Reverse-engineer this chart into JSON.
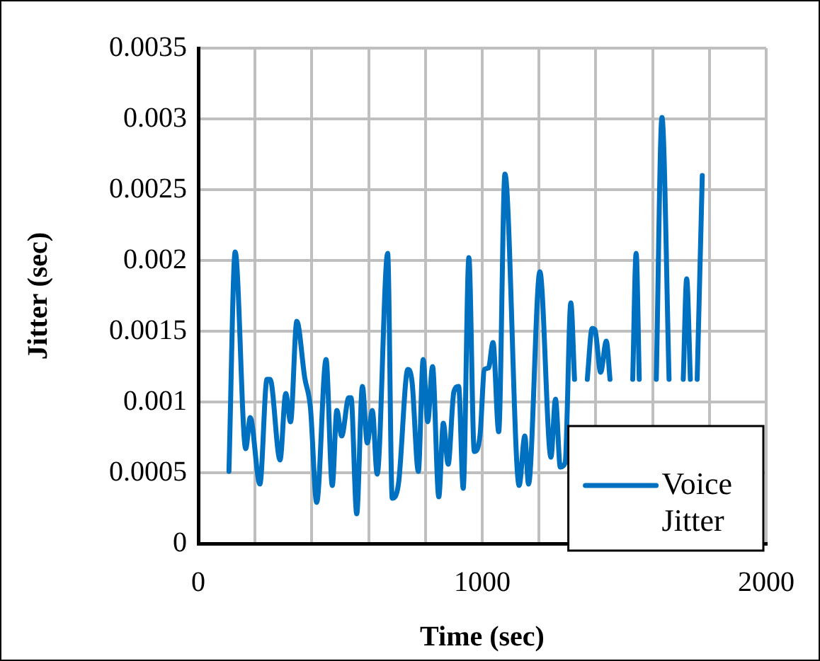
{
  "chart_data": {
    "type": "line",
    "xlabel": "Time (sec)",
    "ylabel": "Jitter (sec)",
    "xlim": [
      0,
      2000
    ],
    "ylim": [
      0,
      0.0035
    ],
    "xticks": [
      0,
      {
        "value": 200,
        "label": null
      },
      {
        "value": 400,
        "label": null
      },
      {
        "value": 600,
        "label": null
      },
      {
        "value": 800,
        "label": null
      },
      1000,
      {
        "value": 1200,
        "label": null
      },
      {
        "value": 1400,
        "label": null
      },
      {
        "value": 1600,
        "label": null
      },
      {
        "value": 1800,
        "label": null
      },
      2000
    ],
    "yticks": [
      0,
      0.0005,
      0.001,
      0.0015,
      0.002,
      0.0025,
      0.003,
      0.0035
    ],
    "grid": true,
    "legend": "bottom right",
    "line_style": "solid",
    "series": [
      {
        "name": "Voice Jitter",
        "color": "#0070c0",
        "x": [
          108,
          130,
          167,
          183,
          217,
          242,
          253,
          288,
          308,
          325,
          347,
          375,
          395,
          417,
          450,
          472,
          488,
          505,
          530,
          538,
          558,
          578,
          595,
          613,
          630,
          667,
          683,
          705,
          738,
          753,
          775,
          792,
          808,
          825,
          847,
          863,
          880,
          900,
          917,
          933,
          953,
          972,
          992,
          1008,
          1022,
          1038,
          1058,
          1080,
          1130,
          1150,
          1163,
          1203,
          1242,
          1258,
          1275,
          1292,
          1312,
          1325,
          1345,
          1370,
          1387,
          1397,
          1417,
          1437,
          1450,
          1465,
          1530,
          1542,
          1553,
          1580,
          1613,
          1633,
          1658,
          1685,
          1708,
          1720,
          1733,
          1745,
          1757,
          1775
        ],
        "values": [
          0.00051,
          0.00206,
          0.00067,
          0.00089,
          0.00042,
          0.00116,
          0.00116,
          0.00059,
          0.00106,
          0.00086,
          0.00157,
          0.00117,
          0.00096,
          0.00029,
          0.0013,
          0.00041,
          0.00094,
          0.00076,
          0.00103,
          0.00103,
          0.00021,
          0.00111,
          0.00071,
          0.00094,
          0.00049,
          0.00205,
          0.00032,
          0.00042,
          0.00123,
          0.00114,
          0.00051,
          0.0013,
          0.00086,
          0.00125,
          0.00033,
          0.00085,
          0.00056,
          0.00107,
          0.00111,
          0.00039,
          0.00202,
          0.00065,
          0.00076,
          0.00123,
          0.00124,
          0.00142,
          0.00079,
          0.00261,
          0.00041,
          0.00076,
          0.00042,
          0.00192,
          0.00061,
          0.00102,
          0.00054,
          0.00057,
          0.0017,
          0.00116,
          null,
          0.00116,
          0.00152,
          0.00151,
          0.00121,
          0.00143,
          0.00116,
          null,
          0.00116,
          0.00205,
          0.00116,
          null,
          0.00116,
          0.00301,
          0.00116,
          null,
          0.00116,
          0.00187,
          0.00116,
          null,
          0.00116,
          0.0026
        ]
      }
    ]
  }
}
